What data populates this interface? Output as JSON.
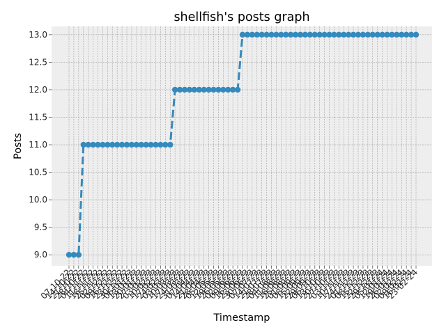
{
  "chart_data": {
    "type": "line",
    "title": "shellfish's posts graph",
    "xlabel": "Timestamp",
    "ylabel": "Posts",
    "ylim": [
      8.8,
      13.15
    ],
    "yticks": [
      9.0,
      9.5,
      10.0,
      10.5,
      11.0,
      11.5,
      12.0,
      12.5,
      13.0
    ],
    "grid": true,
    "line_style": "dashed",
    "marker": "circle",
    "color": "#348ABD",
    "x": [
      "07-10-22",
      "14-10-22",
      "21-10-22",
      "28-10-22",
      "04-11-22",
      "11-11-22",
      "18-11-22",
      "25-11-22",
      "02-12-22",
      "09-12-22",
      "16-12-22",
      "23-12-22",
      "30-12-22",
      "06-01-23",
      "13-01-23",
      "20-01-23",
      "27-01-23",
      "03-02-23",
      "10-02-23",
      "17-02-23",
      "24-02-23",
      "03-03-23",
      "10-03-23",
      "17-03-23",
      "24-03-23",
      "31-03-23",
      "07-04-23",
      "14-04-23",
      "21-04-23",
      "28-04-23",
      "05-05-23",
      "12-05-23",
      "19-05-23",
      "26-05-23",
      "02-06-23",
      "09-06-23",
      "16-06-23",
      "23-06-23",
      "30-06-23",
      "07-07-23",
      "14-07-23",
      "21-07-23",
      "28-07-23",
      "04-08-23",
      "11-08-23",
      "18-08-23",
      "25-08-23",
      "01-09-23",
      "08-09-23",
      "15-09-23",
      "22-09-23",
      "29-09-23",
      "06-10-23",
      "13-10-23",
      "20-10-23",
      "27-10-23",
      "03-11-23",
      "10-11-23",
      "17-11-23",
      "24-11-23",
      "01-12-23",
      "08-12-23",
      "15-12-23",
      "22-12-23",
      "29-12-23",
      "05-01-24",
      "12-01-24",
      "19-01-24",
      "26-01-24",
      "02-02-24",
      "09-02-24",
      "16-02-24",
      "23-02-24"
    ],
    "values": [
      9,
      9,
      9,
      11,
      11,
      11,
      11,
      11,
      11,
      11,
      11,
      11,
      11,
      11,
      11,
      11,
      11,
      11,
      11,
      11,
      11,
      11,
      12,
      12,
      12,
      12,
      12,
      12,
      12,
      12,
      12,
      12,
      12,
      12,
      12,
      12,
      13,
      13,
      13,
      13,
      13,
      13,
      13,
      13,
      13,
      13,
      13,
      13,
      13,
      13,
      13,
      13,
      13,
      13,
      13,
      13,
      13,
      13,
      13,
      13,
      13,
      13,
      13,
      13,
      13,
      13,
      13,
      13,
      13,
      13,
      13,
      13,
      13
    ],
    "xtick_labels": [
      "07-10-22",
      "14-10-22",
      "21-10-22",
      "28-10-22",
      "04-11-22",
      "11-11-22",
      "18-11-22",
      "25-11-22",
      "02-12-22",
      "09-12-22",
      "16-12-22",
      "23-12-22",
      "30-12-22",
      "06-01-23",
      "13-01-23",
      "20-01-23",
      "27-01-23",
      "03-02-23",
      "10-02-23",
      "17-02-23",
      "24-02-23",
      "03-03-23",
      "10-03-23",
      "17-03-23",
      "24-03-23",
      "31-03-23",
      "07-04-23",
      "14-04-23",
      "21-04-23",
      "28-04-23",
      "05-05-23",
      "12-05-23",
      "19-05-23",
      "26-05-23",
      "02-06-23",
      "09-06-23",
      "16-06-23",
      "23-06-23",
      "30-06-23",
      "07-07-23",
      "14-07-23",
      "21-07-23",
      "28-07-23",
      "04-08-23",
      "11-08-23",
      "18-08-23",
      "25-08-23",
      "01-09-23",
      "08-09-23",
      "15-09-23",
      "22-09-23",
      "29-09-23",
      "06-10-23",
      "13-10-23",
      "20-10-23",
      "27-10-23",
      "03-11-23",
      "10-11-23",
      "17-11-23",
      "24-11-23",
      "01-12-23",
      "08-12-23",
      "15-12-23",
      "22-12-23",
      "29-12-23",
      "05-01-24",
      "12-01-24",
      "19-01-24",
      "26-01-24",
      "02-02-24",
      "09-02-24",
      "16-02-24",
      "23-02-24"
    ]
  }
}
